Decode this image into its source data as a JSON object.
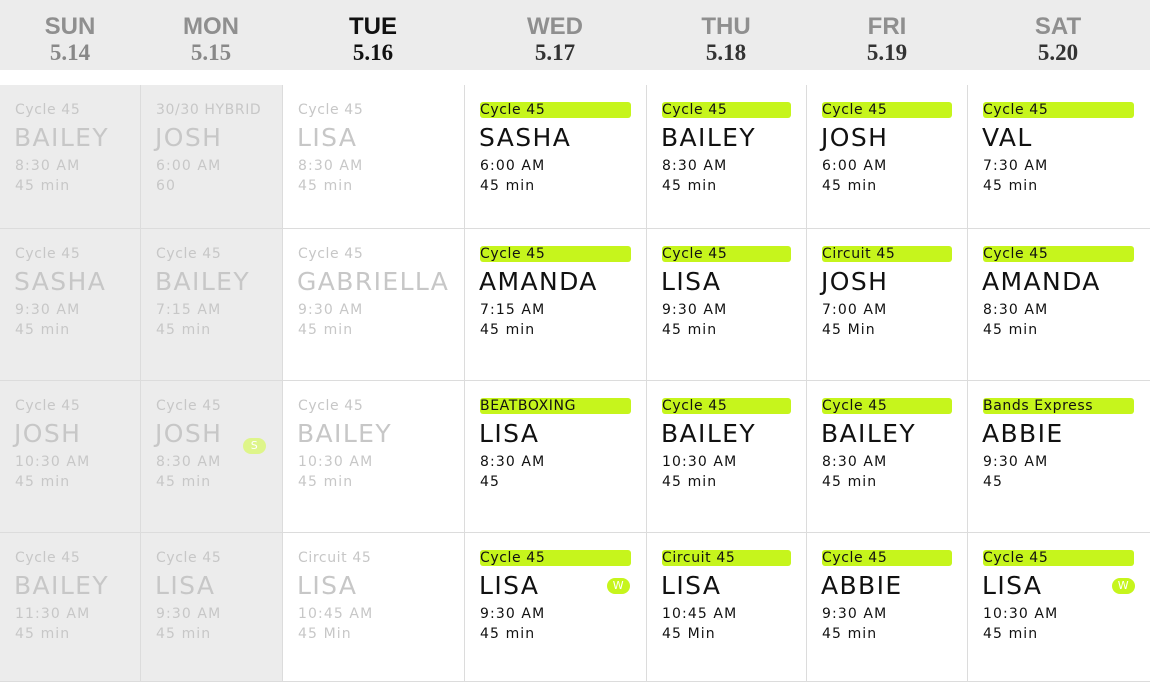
{
  "colors": {
    "header_bg": "#ececec",
    "past_bg": "#ececec",
    "past_text": "#c7c7c7",
    "active_text": "#111111",
    "highlight": "#c6f51c"
  },
  "days": [
    {
      "dow": "SUN",
      "date": "5.14"
    },
    {
      "dow": "MON",
      "date": "5.15"
    },
    {
      "dow": "TUE",
      "date": "5.16"
    },
    {
      "dow": "WED",
      "date": "5.17"
    },
    {
      "dow": "THU",
      "date": "5.18"
    },
    {
      "dow": "FRI",
      "date": "5.19"
    },
    {
      "dow": "SAT",
      "date": "5.20"
    }
  ],
  "rows": [
    [
      {
        "type": "Cycle 45",
        "name": "BAILEY",
        "time": "8:30 AM",
        "dur": "45 min"
      },
      {
        "type": "30/30 HYBRID",
        "name": "JOSH",
        "time": "6:00 AM",
        "dur": "60"
      },
      {
        "type": "Cycle 45",
        "name": "LISA",
        "time": "8:30 AM",
        "dur": "45 min"
      },
      {
        "type": "Cycle 45",
        "name": "SASHA",
        "time": "6:00 AM",
        "dur": "45 min"
      },
      {
        "type": "Cycle 45",
        "name": "BAILEY",
        "time": "8:30 AM",
        "dur": "45 min"
      },
      {
        "type": "Cycle 45",
        "name": "JOSH",
        "time": "6:00 AM",
        "dur": "45 min"
      },
      {
        "type": "Cycle 45",
        "name": "VAL",
        "time": "7:30 AM",
        "dur": "45 min"
      }
    ],
    [
      {
        "type": "Cycle 45",
        "name": "SASHA",
        "time": "9:30 AM",
        "dur": "45 min"
      },
      {
        "type": "Cycle 45",
        "name": "BAILEY",
        "time": "7:15 AM",
        "dur": "45 min"
      },
      {
        "type": "Cycle 45",
        "name": "GABRIELLA",
        "time": "9:30 AM",
        "dur": "45 min"
      },
      {
        "type": "Cycle 45",
        "name": "AMANDA",
        "time": "7:15 AM",
        "dur": "45 min"
      },
      {
        "type": "Cycle 45",
        "name": "LISA",
        "time": "9:30 AM",
        "dur": "45 min"
      },
      {
        "type": "Circuit 45",
        "name": "JOSH",
        "time": "7:00 AM",
        "dur": "45 Min"
      },
      {
        "type": "Cycle 45",
        "name": "AMANDA",
        "time": "8:30 AM",
        "dur": "45 min"
      }
    ],
    [
      {
        "type": "Cycle 45",
        "name": "JOSH",
        "time": "10:30 AM",
        "dur": "45 min"
      },
      {
        "type": "Cycle 45",
        "name": "JOSH",
        "time": "8:30 AM",
        "dur": "45 min",
        "badge": "S"
      },
      {
        "type": "Cycle 45",
        "name": "BAILEY",
        "time": "10:30 AM",
        "dur": "45 min"
      },
      {
        "type": "BEATBOXING",
        "name": "LISA",
        "time": "8:30 AM",
        "dur": "45"
      },
      {
        "type": "Cycle 45",
        "name": "BAILEY",
        "time": "10:30 AM",
        "dur": "45 min"
      },
      {
        "type": "Cycle 45",
        "name": "BAILEY",
        "time": "8:30 AM",
        "dur": "45 min"
      },
      {
        "type": "Bands Express",
        "name": "ABBIE",
        "time": "9:30 AM",
        "dur": "45"
      }
    ],
    [
      {
        "type": "Cycle 45",
        "name": "BAILEY",
        "time": "11:30 AM",
        "dur": "45 min"
      },
      {
        "type": "Cycle 45",
        "name": "LISA",
        "time": "9:30 AM",
        "dur": "45 min"
      },
      {
        "type": "Circuit 45",
        "name": "LISA",
        "time": "10:45 AM",
        "dur": "45 Min"
      },
      {
        "type": "Cycle 45",
        "name": "LISA",
        "time": "9:30 AM",
        "dur": "45 min",
        "badge": "W"
      },
      {
        "type": "Circuit 45",
        "name": "LISA",
        "time": "10:45 AM",
        "dur": "45 Min"
      },
      {
        "type": "Cycle 45",
        "name": "ABBIE",
        "time": "9:30 AM",
        "dur": "45 min"
      },
      {
        "type": "Cycle 45",
        "name": "LISA",
        "time": "10:30 AM",
        "dur": "45 min",
        "badge": "W"
      }
    ]
  ]
}
